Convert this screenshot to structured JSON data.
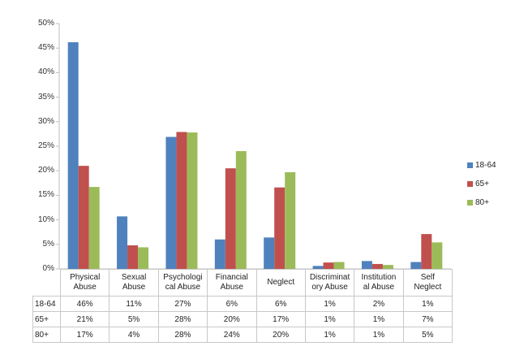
{
  "chart_data": {
    "type": "bar",
    "title": "",
    "xlabel": "",
    "ylabel": "",
    "ylim": [
      0,
      0.5
    ],
    "yticks": [
      "0%",
      "5%",
      "10%",
      "15%",
      "20%",
      "25%",
      "30%",
      "35%",
      "40%",
      "45%",
      "50%"
    ],
    "grid": false,
    "legend_position": "right",
    "categories": [
      "Physical Abuse",
      "Sexual Abuse",
      "Psychological Abuse",
      "Financial Abuse",
      "Neglect",
      "Discriminatory Abuse",
      "Institutional Abuse",
      "Self Neglect"
    ],
    "category_labels_wrapped": [
      [
        "Physical",
        "Abuse"
      ],
      [
        "Sexual",
        "Abuse"
      ],
      [
        "Psychologi",
        "cal Abuse"
      ],
      [
        "Financial",
        "Abuse"
      ],
      [
        "Neglect"
      ],
      [
        "Discriminat",
        "ory Abuse"
      ],
      [
        "Institution",
        "al Abuse"
      ],
      [
        "Self",
        "Neglect"
      ]
    ],
    "series": [
      {
        "name": "18-64",
        "color": "#4F81BD",
        "values": [
          46.2,
          10.7,
          26.9,
          6.0,
          6.4,
          0.6,
          1.6,
          1.4
        ],
        "labels": [
          "46%",
          "11%",
          "27%",
          "6%",
          "6%",
          "1%",
          "2%",
          "1%"
        ]
      },
      {
        "name": "65+",
        "color": "#C0504D",
        "values": [
          21.0,
          4.8,
          27.9,
          20.5,
          16.6,
          1.3,
          1.0,
          7.1
        ],
        "labels": [
          "21%",
          "5%",
          "28%",
          "20%",
          "17%",
          "1%",
          "1%",
          "7%"
        ]
      },
      {
        "name": "80+",
        "color": "#9BBB59",
        "values": [
          16.7,
          4.4,
          27.8,
          24.0,
          19.7,
          1.4,
          0.8,
          5.4
        ],
        "labels": [
          "17%",
          "4%",
          "28%",
          "24%",
          "20%",
          "1%",
          "1%",
          "5%"
        ]
      }
    ]
  }
}
